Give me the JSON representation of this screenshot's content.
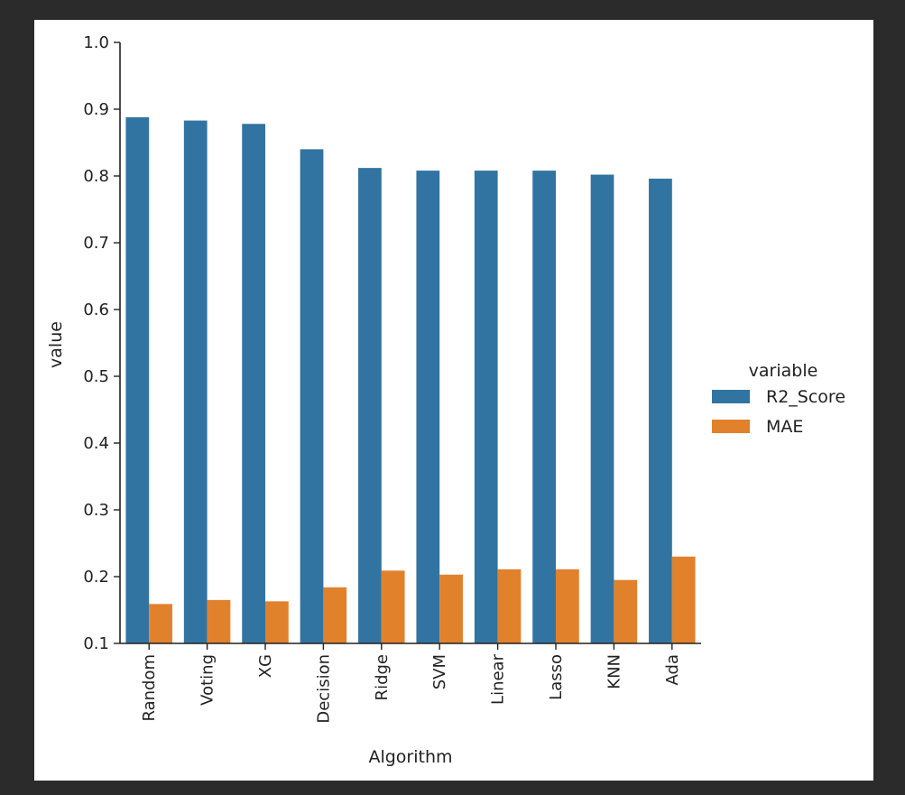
{
  "chart_data": {
    "type": "bar",
    "title": "",
    "xlabel": "Algorithm",
    "ylabel": "value",
    "ylim": [
      0.1,
      1.0
    ],
    "yticks": [
      "0.1",
      "0.2",
      "0.3",
      "0.4",
      "0.5",
      "0.6",
      "0.7",
      "0.8",
      "0.9",
      "1.0"
    ],
    "categories": [
      "Random",
      "Voting",
      "XG",
      "Decision",
      "Ridge",
      "SVM",
      "Linear",
      "Lasso",
      "KNN",
      "Ada"
    ],
    "series": [
      {
        "name": "R2_Score",
        "color": "#3274a1",
        "values": [
          0.888,
          0.883,
          0.878,
          0.84,
          0.812,
          0.808,
          0.808,
          0.808,
          0.802,
          0.796
        ]
      },
      {
        "name": "MAE",
        "color": "#e1812c",
        "values": [
          0.159,
          0.165,
          0.163,
          0.184,
          0.209,
          0.203,
          0.211,
          0.211,
          0.195,
          0.23
        ]
      }
    ],
    "legend": {
      "title": "variable",
      "placement": "center-right"
    },
    "grid": false
  }
}
